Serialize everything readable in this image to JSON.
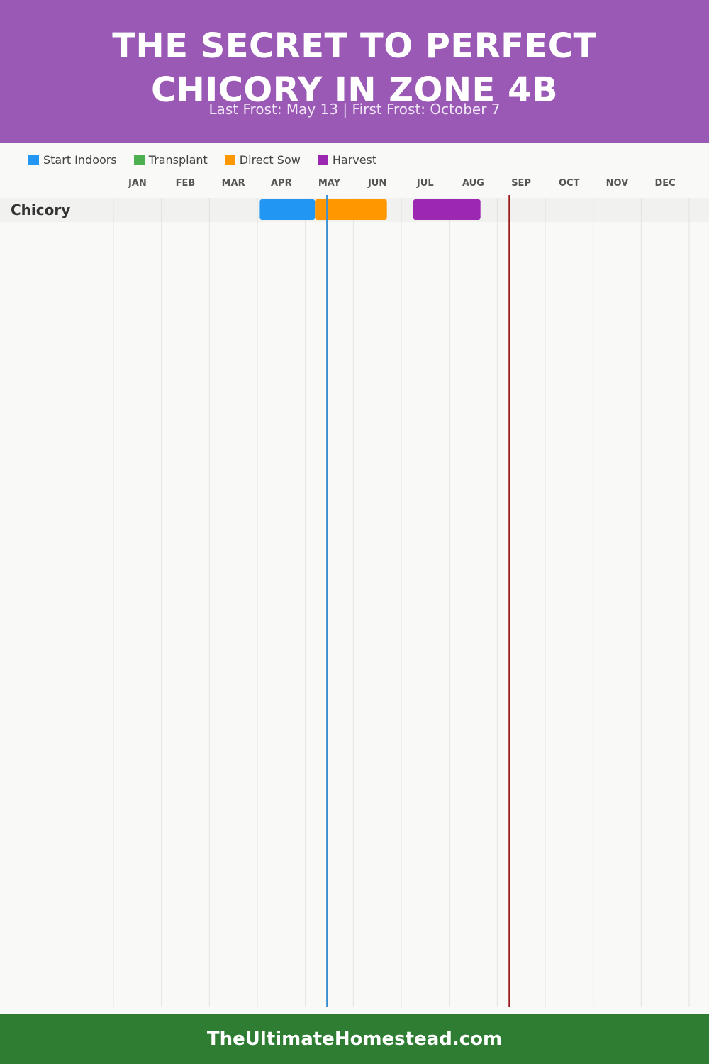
{
  "header": {
    "title_line1": "THE SECRET TO PERFECT",
    "title_line2": "CHICORY IN ZONE 4B",
    "subtitle": "Last Frost: May 13 | First Frost: October 7",
    "background_color": "#9b59b6"
  },
  "legend": [
    {
      "label": "Start Indoors",
      "color": "#2196f3"
    },
    {
      "label": "Transplant",
      "color": "#4caf50"
    },
    {
      "label": "Direct Sow",
      "color": "#ff9800"
    },
    {
      "label": "Harvest",
      "color": "#9c27b0"
    }
  ],
  "chart_data": {
    "type": "gantt",
    "months": [
      "JAN",
      "FEB",
      "MAR",
      "APR",
      "MAY",
      "JUN",
      "JUL",
      "AUG",
      "SEP",
      "OCT",
      "NOV",
      "DEC"
    ],
    "crops": [
      {
        "name": "Chicory",
        "tasks": [
          {
            "phase": "Start Indoors",
            "start": "Apr 1",
            "end": "May 13",
            "start_month": 4.05,
            "end_month": 5.2
          },
          {
            "phase": "Direct Sow",
            "start": "May 3",
            "end": "Jun 18",
            "start_month": 5.2,
            "end_month": 6.7
          },
          {
            "phase": "Harvest",
            "start": "Jul 1",
            "end": "Aug 17",
            "start_month": 7.25,
            "end_month": 8.65
          }
        ]
      }
    ],
    "markers": [
      {
        "name": "Last Frost",
        "date": "May 13",
        "month_position": 5.45,
        "color": "#3a8fd1"
      },
      {
        "name": "First Frost",
        "date": "October 7",
        "month_position": 9.25,
        "color": "#9e1b1b"
      }
    ],
    "grid": true
  },
  "footer": {
    "text": "TheUltimateHomestead.com",
    "background_color": "#2e7d32"
  }
}
